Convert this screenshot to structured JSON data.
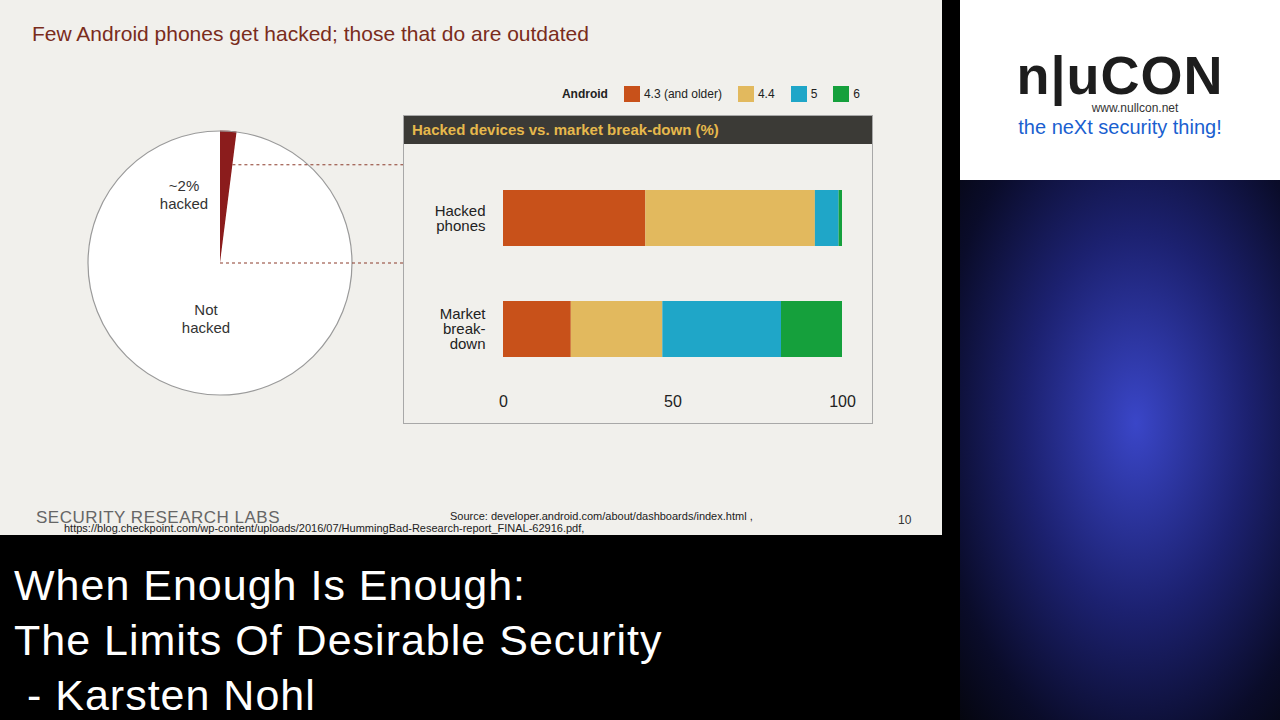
{
  "slide": {
    "title": "Few Android phones get hacked; those that do are outdated",
    "footer_logo": "SECURITY RESEARCH LABS",
    "source": "Source: developer.android.com/about/dashboards/index.html ,",
    "source_url": "https://blog.checkpoint.com/wp-content/uploads/2016/07/HummingBad-Research-report_FINAL-62916.pdf,",
    "page": 10
  },
  "overlay": {
    "logo": "n|uCON",
    "logo_url": "www.nullcon.net",
    "tagline": "the neXt security thing!",
    "talk_title": [
      "When Enough Is Enough:",
      "The Limits Of Desirable Security",
      " - Karsten Nohl"
    ]
  },
  "chart_data": [
    {
      "type": "pie",
      "categories": [
        "~2% hacked",
        "Not hacked"
      ],
      "values": [
        2,
        98
      ],
      "colors": [
        "#8b1c1c",
        "#ffffff"
      ]
    },
    {
      "type": "bar",
      "orientation": "horizontal",
      "stacked": true,
      "title": "Hacked devices vs. market break-down (%)",
      "legend_title": "Android",
      "legend": "top-right",
      "categories": [
        "Hacked phones",
        "Market break-down"
      ],
      "series": [
        {
          "name": "4.3 (and older)",
          "color": "#c8511a",
          "values": [
            42,
            20
          ]
        },
        {
          "name": "4.4",
          "color": "#e2b95e",
          "values": [
            50,
            27
          ]
        },
        {
          "name": "5",
          "color": "#1fa6c8",
          "values": [
            7,
            35
          ]
        },
        {
          "name": "6",
          "color": "#15a03c",
          "values": [
            1,
            18
          ]
        }
      ],
      "xlim": [
        0,
        100
      ],
      "xticks": [
        0,
        50,
        100
      ],
      "grid": false
    }
  ]
}
